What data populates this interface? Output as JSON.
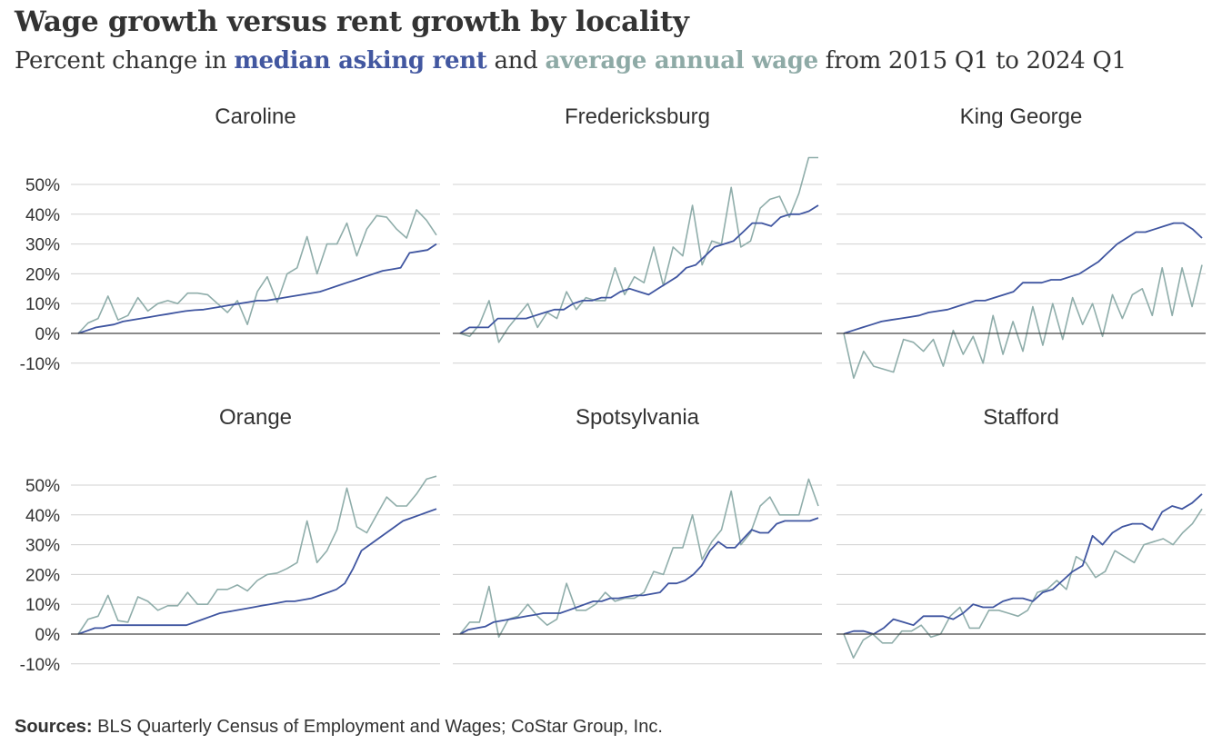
{
  "title": "Wage growth versus rent growth by locality",
  "subtitle": {
    "prefix": "Percent change in ",
    "rent_label": "median asking rent",
    "middle": " and ",
    "wage_label": "average annual wage",
    "suffix": " from 2015 Q1 to 2024 Q1"
  },
  "sources": {
    "label": "Sources:",
    "text": " BLS Quarterly Census of Employment and Wages; CoStar Group, Inc."
  },
  "colors": {
    "rent": "#3f55a0",
    "wage": "#8fadaa",
    "grid": "#d0d0d0",
    "zero": "#444444",
    "text": "#333333"
  },
  "chart_data": [
    {
      "type": "line",
      "title": "Caroline",
      "x_range": [
        "2015 Q1",
        "2024 Q1"
      ],
      "ylim": [
        -15,
        60
      ],
      "yticks": [
        "50%",
        "40%",
        "30%",
        "20%",
        "10%",
        "0%",
        "-10%"
      ],
      "series": [
        {
          "name": "median asking rent",
          "values": [
            0,
            1,
            2,
            2.5,
            3,
            4,
            4.5,
            5,
            5.5,
            6,
            6.5,
            7,
            7.5,
            7.8,
            8,
            8.5,
            9,
            9.5,
            10,
            10.5,
            11,
            11,
            11.5,
            12,
            12.5,
            13,
            13.5,
            14,
            15,
            16,
            17,
            18,
            19,
            20,
            21,
            21.5,
            22,
            27,
            27.5,
            28,
            30
          ]
        },
        {
          "name": "average annual wage",
          "values": [
            0,
            3.5,
            5,
            12.5,
            4.5,
            6,
            12,
            7.5,
            10,
            11,
            10,
            13.5,
            13.5,
            13,
            10,
            7,
            11,
            3,
            14,
            19,
            10.5,
            20,
            22,
            32.5,
            20,
            30,
            30,
            37,
            26,
            35,
            39.5,
            39,
            35,
            32,
            41.5,
            38,
            33
          ]
        }
      ]
    },
    {
      "type": "line",
      "title": "Fredericksburg",
      "x_range": [
        "2015 Q1",
        "2024 Q1"
      ],
      "ylim": [
        -15,
        60
      ],
      "yticks": [
        "50%",
        "40%",
        "30%",
        "20%",
        "10%",
        "0%",
        "-10%"
      ],
      "series": [
        {
          "name": "median asking rent",
          "values": [
            0,
            2,
            2,
            2,
            5,
            5,
            5,
            5,
            6,
            7,
            8,
            8,
            10,
            11,
            11,
            12,
            12,
            14,
            15,
            14,
            13,
            15,
            17,
            19,
            22,
            23,
            26,
            29,
            30,
            31,
            34,
            37,
            37,
            36,
            39,
            40,
            40,
            41,
            43
          ]
        },
        {
          "name": "average annual wage",
          "values": [
            0,
            -1,
            3,
            11,
            -3,
            2,
            6,
            10,
            2,
            7,
            5,
            14,
            8,
            12,
            11,
            11,
            22,
            13,
            19,
            17,
            29,
            16,
            29,
            26,
            43,
            23,
            31,
            30,
            49,
            29,
            31,
            42,
            45,
            46,
            39,
            47,
            59,
            59
          ]
        }
      ]
    },
    {
      "type": "line",
      "title": "King George",
      "x_range": [
        "2015 Q1",
        "2024 Q1"
      ],
      "ylim": [
        -15,
        60
      ],
      "yticks": [
        "50%",
        "40%",
        "30%",
        "20%",
        "10%",
        "0%",
        "-10%"
      ],
      "series": [
        {
          "name": "median asking rent",
          "values": [
            0,
            1,
            2,
            3,
            4,
            4.5,
            5,
            5.5,
            6,
            7,
            7.5,
            8,
            9,
            10,
            11,
            11,
            12,
            13,
            14,
            17,
            17,
            17,
            18,
            18,
            19,
            20,
            22,
            24,
            27,
            30,
            32,
            34,
            34,
            35,
            36,
            37,
            37,
            35,
            32
          ]
        },
        {
          "name": "average annual wage",
          "values": [
            0,
            -15,
            -6,
            -11,
            -12,
            -13,
            -2,
            -3,
            -6,
            -2,
            -11,
            1,
            -7,
            -1,
            -10,
            6,
            -7,
            4,
            -6,
            9,
            -4,
            10,
            -2,
            12,
            3,
            10,
            -1,
            13,
            5,
            13,
            15,
            6,
            22,
            6,
            22,
            9,
            23
          ]
        }
      ]
    },
    {
      "type": "line",
      "title": "Orange",
      "x_range": [
        "2015 Q1",
        "2024 Q1"
      ],
      "ylim": [
        -15,
        60
      ],
      "yticks": [
        "50%",
        "40%",
        "30%",
        "20%",
        "10%",
        "0%",
        "-10%"
      ],
      "series": [
        {
          "name": "median asking rent",
          "values": [
            0,
            1,
            2,
            2,
            3,
            3,
            3,
            3,
            3,
            3,
            3,
            3,
            3,
            3,
            4,
            5,
            6,
            7,
            7.5,
            8,
            8.5,
            9,
            9.5,
            10,
            10.5,
            11,
            11,
            11.5,
            12,
            13,
            14,
            15,
            17,
            22,
            28,
            30,
            32,
            34,
            36,
            38,
            39,
            40,
            41,
            42
          ]
        },
        {
          "name": "average annual wage",
          "values": [
            0,
            5,
            6,
            13,
            4.5,
            4,
            12.5,
            11,
            8,
            9.5,
            9.5,
            14,
            10,
            10,
            15,
            15,
            16.5,
            14.5,
            18,
            20,
            20.5,
            22,
            24,
            38,
            24,
            28,
            35,
            49,
            36,
            34,
            40,
            46,
            43,
            43,
            47,
            52,
            53
          ]
        }
      ]
    },
    {
      "type": "line",
      "title": "Spotsylvania",
      "x_range": [
        "2015 Q1",
        "2024 Q1"
      ],
      "ylim": [
        -15,
        60
      ],
      "yticks": [
        "50%",
        "40%",
        "30%",
        "20%",
        "10%",
        "0%",
        "-10%"
      ],
      "series": [
        {
          "name": "median asking rent",
          "values": [
            0,
            1.5,
            2,
            2.5,
            4,
            4.5,
            5,
            5.5,
            6,
            6.5,
            7,
            7,
            7,
            8,
            9,
            10,
            11,
            11,
            12,
            12,
            12.5,
            13,
            13,
            13.5,
            14,
            17,
            17,
            18,
            20,
            23,
            28,
            31,
            29,
            29,
            32,
            35,
            34,
            34,
            37,
            38,
            38,
            38,
            38,
            39
          ]
        },
        {
          "name": "average annual wage",
          "values": [
            0,
            4,
            4,
            16,
            -1,
            5,
            6,
            10,
            6,
            3,
            5,
            17,
            8,
            8,
            10,
            14,
            11,
            12,
            12,
            14,
            21,
            20,
            29,
            29,
            40,
            25,
            31,
            35,
            48,
            30,
            34,
            43,
            46,
            40,
            40,
            40,
            52,
            43
          ]
        }
      ]
    },
    {
      "type": "line",
      "title": "Stafford",
      "x_range": [
        "2015 Q1",
        "2024 Q1"
      ],
      "ylim": [
        -15,
        60
      ],
      "yticks": [
        "50%",
        "40%",
        "30%",
        "20%",
        "10%",
        "0%",
        "-10%"
      ],
      "series": [
        {
          "name": "median asking rent",
          "values": [
            0,
            1,
            1,
            0,
            2,
            5,
            4,
            3,
            6,
            6,
            6,
            5,
            7,
            10,
            9,
            9,
            11,
            12,
            12,
            11,
            14,
            15,
            18,
            21,
            23,
            33,
            30,
            34,
            36,
            37,
            37,
            35,
            41,
            43,
            42,
            44,
            47
          ]
        },
        {
          "name": "average annual wage",
          "values": [
            0,
            -8,
            -2,
            0,
            -3,
            -3,
            1,
            1,
            3,
            -1,
            0,
            6,
            9,
            2,
            2,
            8,
            8,
            7,
            6,
            8,
            14,
            15,
            18,
            15,
            26,
            24,
            19,
            21,
            28,
            26,
            24,
            30,
            31,
            32,
            30,
            34,
            37,
            42
          ]
        }
      ]
    }
  ]
}
